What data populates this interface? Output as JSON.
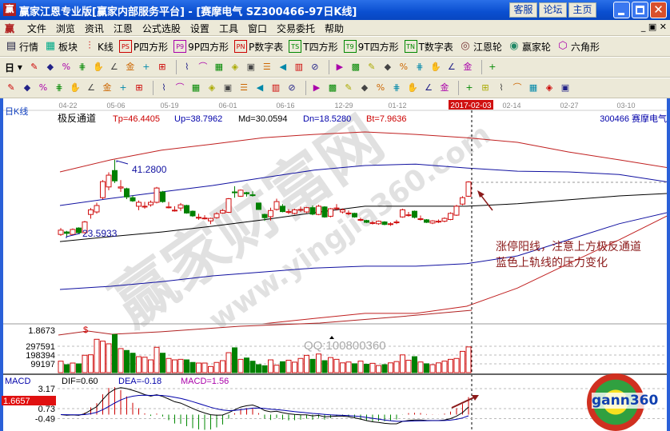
{
  "window": {
    "title": "赢家江恩专业版[赢家内部服务平台] - [赛摩电气   SZ300466-97日K线]",
    "logo": "赢",
    "links": [
      "客服",
      "论坛",
      "主页"
    ]
  },
  "menu": [
    "文件",
    "浏览",
    "资讯",
    "江恩",
    "公式选股",
    "设置",
    "工具",
    "窗口",
    "交易委托",
    "帮助"
  ],
  "toolbar1": [
    {
      "icon": "quote-table-icon",
      "label": "行情"
    },
    {
      "icon": "sector-icon",
      "label": "板块"
    },
    {
      "icon": "kline-icon",
      "label": "K线"
    },
    {
      "icon": "ps-icon",
      "label": "P四方形"
    },
    {
      "icon": "p9-icon",
      "label": "9P四方形"
    },
    {
      "icon": "pn-icon",
      "label": "P数字表"
    },
    {
      "icon": "ts-icon",
      "label": "T四方形"
    },
    {
      "icon": "t9-icon",
      "label": "9T四方形"
    },
    {
      "icon": "tn-icon",
      "label": "T数字表"
    },
    {
      "icon": "gann-wheel-icon",
      "label": "江恩轮"
    },
    {
      "icon": "winner-wheel-icon",
      "label": "赢家轮"
    },
    {
      "icon": "hexagon-icon",
      "label": "六角形"
    }
  ],
  "toolbar2": {
    "period": "日",
    "icons": [
      "chain-icon",
      "doc-icon",
      "wave3-icon",
      "wave9-icon",
      "candle-icon",
      "weave-icon",
      "flag-icon",
      "first-icon",
      "last-icon",
      "prev-icon",
      "next-icon",
      "diamond-left-icon",
      "diamond-up-icon",
      "diamond-h-icon",
      "diamond-v-icon",
      "diamond-all-icon",
      "diamond-cross-icon",
      "hand-icon",
      "crosshair-icon",
      "line-icon",
      "festival-icon",
      "line-tool-icon",
      "calendar-icon",
      "calculator-icon",
      "notes-icon",
      "save-icon",
      "network-icon",
      "print-icon"
    ]
  },
  "toolbar3": {
    "icons": [
      "pen-icon",
      "parallel-icon",
      "gold-icon",
      "gold2-icon",
      "fib-icon",
      "spiral-icon",
      "eraser-icon",
      "circle-icon",
      "grid-icon",
      "n2-icon",
      "box-icon",
      "fan-icon",
      "square-icon",
      "square2-icon",
      "angle-icon",
      "zigzag-icon",
      "grid2-icon",
      "grid3-icon",
      "channel-icon",
      "ruler-icon",
      "percent-line-icon",
      "percent-icon",
      "percent2-icon",
      "gold-circle-icon",
      "gold3-icon",
      "pen2-icon",
      "gold4-icon",
      "gold5-icon",
      "angle2-icon",
      "angle3-icon",
      "angle4-icon",
      "angle5-icon",
      "angle6-icon",
      "angle7-icon"
    ]
  },
  "chart": {
    "period_label": "日K线",
    "dates": [
      "04-22",
      "05-06",
      "05-19",
      "06-01",
      "06-16",
      "12-29",
      "01-12",
      "2017-02-03",
      "02-14",
      "02-27",
      "03-10"
    ],
    "indicator": {
      "name": "极反通道",
      "tp": "Tp=46.4405",
      "up": "Up=38.7962",
      "md": "Md=30.0594",
      "dn": "Dn=18.5280",
      "bt": "Bt=7.9636"
    },
    "stock": "300466  赛摩电气",
    "high_label": "41.2800",
    "low_label": "23.5933",
    "annotation": [
      "涨停阳线，注意上方极反通道",
      "蓝色上轨线的压力变化"
    ],
    "colors": {
      "up": "#d01010",
      "down": "#008000",
      "tp": "#c02020",
      "up_band": "#1010a0",
      "md": "#000000"
    }
  },
  "chart_data": {
    "type": "candlestick",
    "candles_ohlc": [
      [
        23.1,
        24.9,
        22.7,
        24.3
      ],
      [
        23.8,
        24.1,
        22.4,
        23.4
      ],
      [
        23.1,
        24.8,
        22.9,
        24.5
      ],
      [
        24.9,
        25.1,
        23.4,
        23.6
      ],
      [
        23.6,
        26.9,
        23.4,
        26.6
      ],
      [
        28.7,
        30.5,
        27.5,
        30.0
      ],
      [
        29.4,
        32.0,
        28.9,
        31.2
      ],
      [
        33.4,
        38.3,
        33.0,
        37.9
      ],
      [
        36.4,
        40.5,
        35.5,
        39.7
      ],
      [
        41.0,
        44.0,
        37.5,
        38.1
      ],
      [
        36.1,
        38.3,
        35.0,
        36.4
      ],
      [
        35.9,
        36.2,
        33.0,
        33.6
      ],
      [
        33.4,
        34.0,
        32.2,
        32.5
      ],
      [
        31.0,
        32.6,
        29.9,
        32.1
      ],
      [
        30.9,
        32.2,
        30.3,
        31.0
      ],
      [
        31.4,
        32.6,
        30.9,
        32.1
      ],
      [
        32.1,
        36.4,
        31.8,
        36.1
      ],
      [
        35.0,
        35.3,
        32.0,
        32.3
      ],
      [
        30.7,
        32.2,
        30.4,
        30.8
      ],
      [
        29.8,
        31.0,
        29.5,
        29.9
      ],
      [
        30.5,
        31.9,
        29.7,
        31.4
      ],
      [
        31.2,
        31.4,
        28.9,
        29.1
      ],
      [
        29.6,
        29.8,
        28.0,
        28.3
      ],
      [
        27.8,
        28.9,
        27.2,
        27.9
      ],
      [
        27.6,
        28.5,
        27.3,
        27.7
      ],
      [
        26.9,
        27.8,
        26.0,
        27.6
      ],
      [
        27.8,
        29.3,
        27.5,
        28.9
      ],
      [
        29.1,
        30.2,
        28.9,
        29.8
      ],
      [
        29.3,
        33.3,
        29.1,
        33.1
      ],
      [
        35.0,
        36.6,
        33.4,
        34.9
      ],
      [
        33.8,
        35.7,
        33.6,
        35.5
      ],
      [
        34.8,
        35.0,
        33.7,
        34.5
      ],
      [
        34.2,
        35.2,
        33.7,
        34.1
      ],
      [
        31.9,
        32.0,
        30.0,
        30.1
      ],
      [
        28.7,
        28.9,
        26.9,
        27.8
      ],
      [
        28.1,
        30.6,
        27.0,
        29.8
      ],
      [
        30.1,
        33.1,
        29.8,
        32.3
      ],
      [
        31.0,
        31.6,
        29.3,
        29.5
      ],
      [
        29.4,
        30.2,
        28.8,
        29.5
      ],
      [
        29.0,
        30.3,
        28.7,
        30.0
      ],
      [
        30.0,
        30.9,
        29.4,
        30.1
      ],
      [
        29.4,
        30.8,
        29.1,
        30.6
      ],
      [
        30.6,
        31.2,
        28.5,
        28.8
      ],
      [
        28.7,
        31.4,
        28.5,
        31.0
      ],
      [
        30.8,
        31.0,
        27.8,
        28.0
      ],
      [
        28.2,
        30.5,
        27.9,
        30.3
      ],
      [
        30.4,
        31.6,
        29.8,
        30.5
      ],
      [
        29.4,
        30.4,
        29.0,
        30.0
      ],
      [
        29.0,
        29.8,
        28.5,
        29.1
      ],
      [
        29.0,
        29.2,
        27.8,
        28.0
      ],
      [
        27.2,
        27.8,
        26.8,
        27.3
      ],
      [
        27.0,
        27.2,
        26.3,
        26.5
      ],
      [
        26.3,
        26.9,
        25.9,
        26.4
      ],
      [
        26.1,
        27.0,
        25.8,
        26.8
      ],
      [
        26.6,
        26.8,
        25.7,
        25.9
      ],
      [
        26.0,
        26.5,
        25.5,
        26.1
      ],
      [
        26.5,
        27.2,
        26.0,
        26.6
      ],
      [
        28.0,
        30.3,
        27.8,
        30.0
      ],
      [
        28.5,
        29.4,
        28.1,
        28.6
      ],
      [
        29.6,
        29.8,
        27.6,
        27.9
      ],
      [
        27.4,
        28.4,
        27.0,
        27.5
      ],
      [
        27.2,
        27.4,
        26.3,
        26.5
      ],
      [
        26.3,
        27.1,
        26.0,
        26.9
      ],
      [
        26.7,
        27.3,
        26.3,
        26.8
      ],
      [
        26.8,
        27.9,
        26.5,
        27.6
      ],
      [
        27.3,
        29.3,
        27.1,
        29.0
      ],
      [
        28.5,
        31.4,
        28.3,
        31.0
      ],
      [
        31.6,
        33.8,
        31.3,
        33.4
      ],
      [
        33.8,
        38.0,
        33.6,
        37.8
      ]
    ],
    "channel": {
      "tp": [
        40.6,
        44.0,
        46.7,
        48.4,
        50.2,
        51.1,
        51.8,
        51.1,
        50.2,
        48.9,
        46.2,
        44.0,
        41.7
      ],
      "up": [
        31.2,
        33.2,
        35.0,
        36.8,
        39.0,
        41.1,
        42.4,
        42.8,
        41.7,
        40.8,
        40.6,
        39.9,
        37.7
      ],
      "md": [
        21.1,
        22.5,
        23.8,
        25.4,
        27.2,
        29.2,
        31.0,
        31.0,
        31.0,
        31.7,
        32.8,
        33.9,
        34.6
      ],
      "dn": [
        7.7,
        8.6,
        9.9,
        11.5,
        12.6,
        13.7,
        14.2,
        14.2,
        14.9,
        17.1,
        21.6,
        26.1,
        29.4
      ],
      "bt": [
        -5.4,
        -5.4,
        -4.8,
        -3.1,
        -1.9,
        -0.4,
        1.0,
        1.0,
        3.0,
        8.1,
        14.9,
        21.6,
        28.7
      ]
    },
    "volume": [
      129000,
      90000,
      108000,
      99000,
      196000,
      201000,
      376000,
      355000,
      325000,
      430000,
      271000,
      250000,
      219000,
      180000,
      174000,
      144000,
      286000,
      219000,
      160000,
      144000,
      150000,
      144000,
      115000,
      108000,
      108000,
      69000,
      115000,
      135000,
      225000,
      280000,
      150000,
      165000,
      129000,
      90000,
      78000,
      144000,
      84000,
      123000,
      140000,
      118000,
      160000,
      195000,
      150000,
      210000,
      135000,
      170000,
      150000,
      110000,
      120000,
      100000,
      130000,
      95000,
      105000,
      80000,
      90000,
      110000,
      125000,
      200000,
      140000,
      180000,
      120000,
      100000,
      90000,
      110000,
      130000,
      150000,
      160000,
      240000,
      290000
    ],
    "volume_ticks": [
      "297591",
      "198394",
      "99197"
    ],
    "volume_indicator_label": "1.8673",
    "macd": {
      "name": "MACD",
      "dif": "DIF=0.60",
      "dea": "DEA=-0.18",
      "macd": "MACD=1.56",
      "ticks": [
        "3.17",
        "0.73",
        "-0.49"
      ],
      "cursor_value": "1.6657"
    }
  },
  "watermark": {
    "main": "赢家财富网",
    "url": "www.yingjia360.com",
    "qq": "QQ:100800360",
    "logo": "gann360"
  }
}
